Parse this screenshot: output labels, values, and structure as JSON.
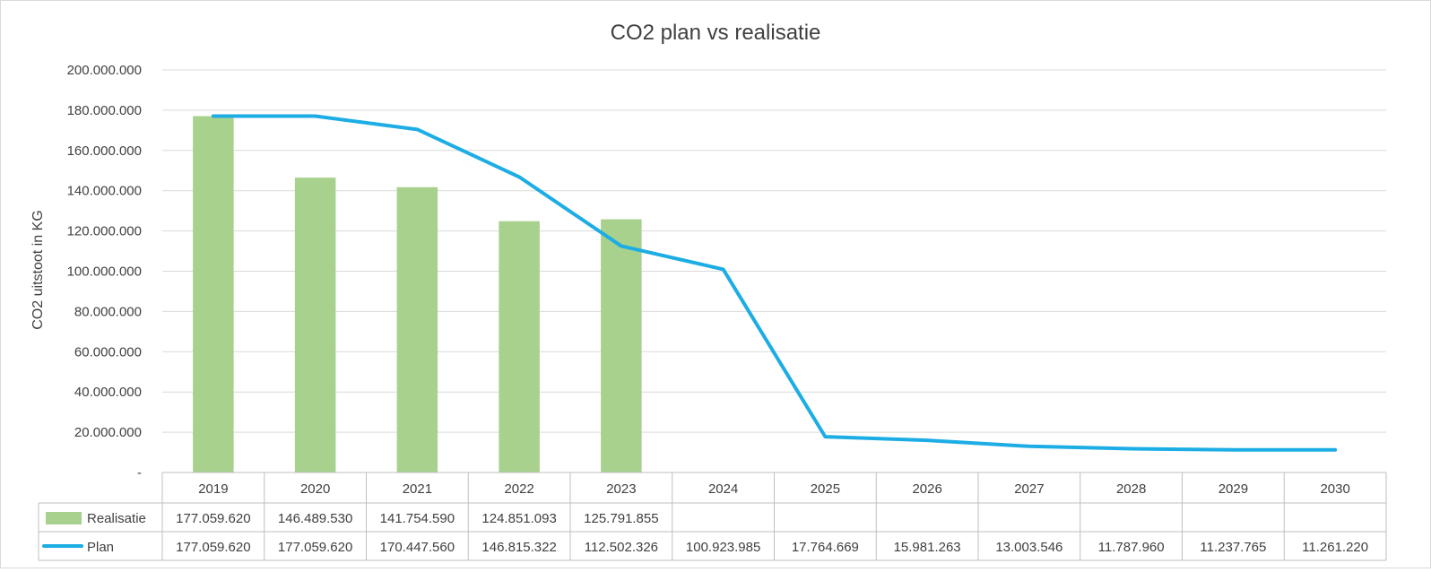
{
  "chart_data": {
    "type": "bar",
    "title": "CO2 plan vs realisatie",
    "ylabel": "CO2 uitstoot in KG",
    "xlabel": "",
    "ylim": [
      0,
      200000000
    ],
    "yticks": [
      "-",
      "20.000.000",
      "40.000.000",
      "60.000.000",
      "80.000.000",
      "100.000.000",
      "120.000.000",
      "140.000.000",
      "160.000.000",
      "180.000.000",
      "200.000.000"
    ],
    "ytick_values": [
      0,
      20000000,
      40000000,
      60000000,
      80000000,
      100000000,
      120000000,
      140000000,
      160000000,
      180000000,
      200000000
    ],
    "grid": true,
    "legend": "data-table",
    "categories": [
      "2019",
      "2020",
      "2021",
      "2022",
      "2023",
      "2024",
      "2025",
      "2026",
      "2027",
      "2028",
      "2029",
      "2030"
    ],
    "series": [
      {
        "name": "Realisatie",
        "type": "bar",
        "color": "#a9d18e",
        "values": [
          177059620,
          146489530,
          141754590,
          124851093,
          125791855,
          null,
          null,
          null,
          null,
          null,
          null,
          null
        ],
        "labels": [
          "177.059.620",
          "146.489.530",
          "141.754.590",
          "124.851.093",
          "125.791.855",
          "",
          "",
          "",
          "",
          "",
          "",
          ""
        ]
      },
      {
        "name": "Plan",
        "type": "line",
        "color": "#1cade4",
        "values": [
          177059620,
          177059620,
          170447560,
          146815322,
          112502326,
          100923985,
          17764669,
          15981263,
          13003546,
          11787960,
          11237765,
          11261220
        ],
        "labels": [
          "177.059.620",
          "177.059.620",
          "170.447.560",
          "146.815.322",
          "112.502.326",
          "100.923.985",
          "17.764.669",
          "15.981.263",
          "13.003.546",
          "11.787.960",
          "11.237.765",
          "11.261.220"
        ]
      }
    ]
  }
}
